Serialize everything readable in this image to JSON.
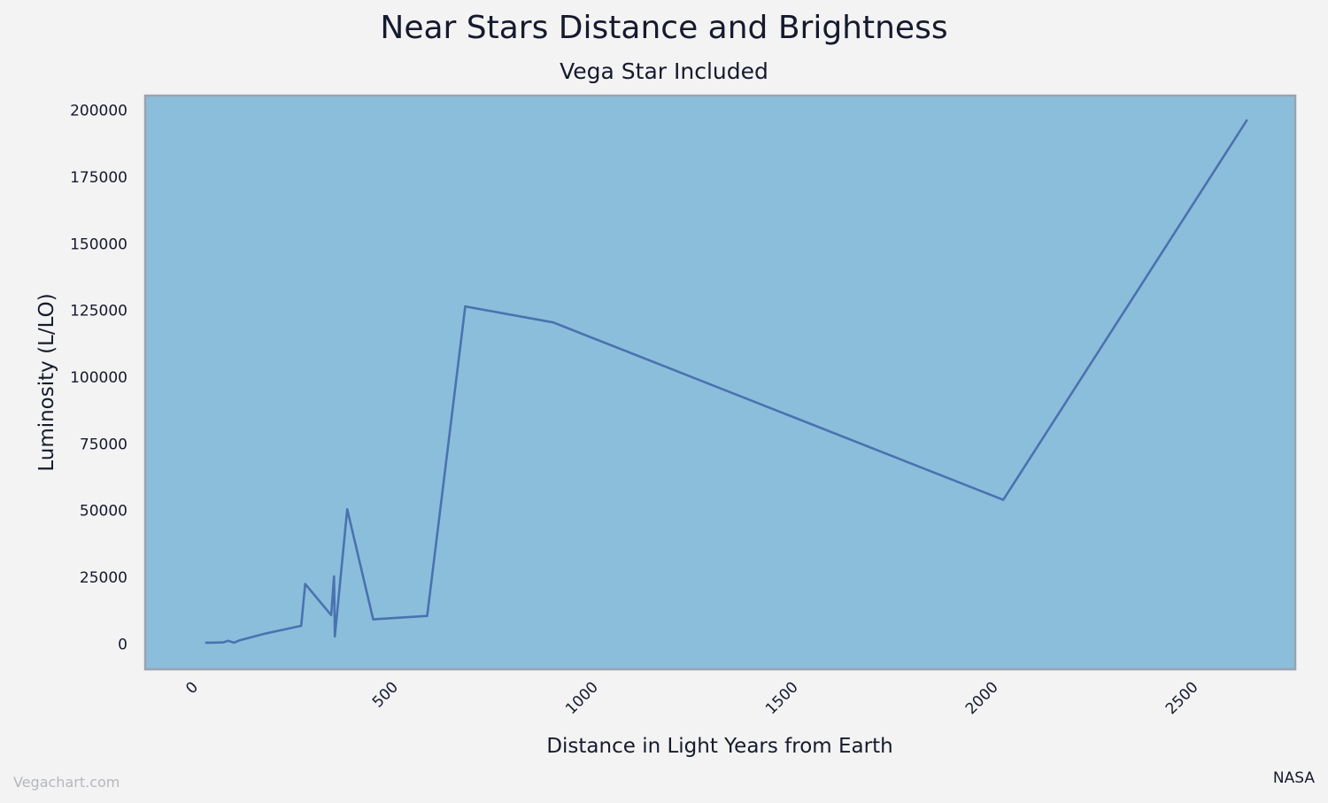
{
  "chart_data": {
    "type": "line",
    "title": "Near Stars Distance and Brightness",
    "subtitle": "Vega Star Included",
    "xlabel": "Distance in Light Years from Earth",
    "ylabel": "Luminosity (L/LO)",
    "xlim": [
      -125,
      2750
    ],
    "ylim": [
      -9500,
      205500
    ],
    "x_ticks": [
      0,
      500,
      1000,
      1500,
      2000,
      2500
    ],
    "y_ticks": [
      0,
      25000,
      50000,
      75000,
      100000,
      125000,
      150000,
      175000,
      200000
    ],
    "grid": false,
    "series": [
      {
        "color": "#4a72b0",
        "x": [
          25,
          43,
          70,
          82,
          97,
          110,
          173,
          265,
          275,
          340,
          347,
          349,
          380,
          445,
          580,
          675,
          895,
          2020,
          2630
        ],
        "y": [
          500,
          500,
          600,
          1200,
          500,
          1300,
          3800,
          6800,
          22500,
          10800,
          25300,
          2800,
          50500,
          9200,
          10500,
          126500,
          120500,
          54000,
          196500
        ]
      }
    ]
  },
  "source_credit": "NASA",
  "watermark": "Vegachart.com",
  "colors": {
    "background": "#f3f3f3",
    "plot_area": "#8bbedb",
    "plot_border": "#9aa3ae",
    "line": "#4a72b0",
    "text": "#151a2d"
  }
}
